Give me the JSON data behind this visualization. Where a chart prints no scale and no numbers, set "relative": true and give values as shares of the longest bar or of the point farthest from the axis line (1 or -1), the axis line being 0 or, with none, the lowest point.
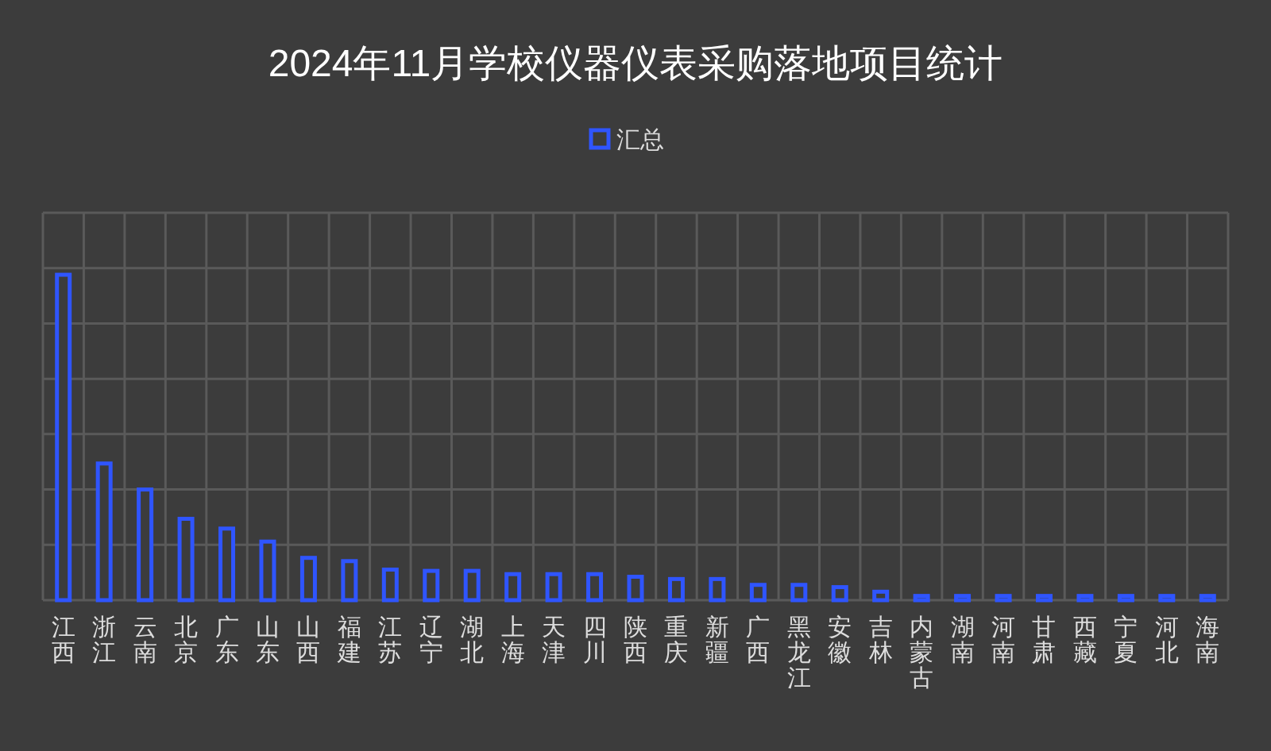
{
  "chart_data": {
    "type": "bar",
    "title": "2024年11月学校仪器仪表采购落地项目统计",
    "relative": true,
    "grid": true,
    "legend": "top",
    "categories": [
      "江西",
      "浙江",
      "云南",
      "北京",
      "广东",
      "山东",
      "山西",
      "福建",
      "江苏",
      "辽宁",
      "湖北",
      "上海",
      "天津",
      "四川",
      "陕西",
      "重庆",
      "新疆",
      "广西",
      "黑龙江",
      "安徽",
      "吉林",
      "内蒙古",
      "湖南",
      "河南",
      "甘肃",
      "西藏",
      "宁夏",
      "河北",
      "海南"
    ],
    "series": [
      {
        "name": "汇总",
        "color": "#2f55ff",
        "values": [
          1,
          0.42,
          0.34,
          0.25,
          0.22,
          0.18,
          0.13,
          0.12,
          0.094,
          0.09,
          0.09,
          0.08,
          0.08,
          0.08,
          0.072,
          0.065,
          0.065,
          0.047,
          0.047,
          0.04,
          0.026,
          0.013,
          0.013,
          0.013,
          0.013,
          0.013,
          0.013,
          0.013,
          0.013
        ]
      }
    ]
  }
}
